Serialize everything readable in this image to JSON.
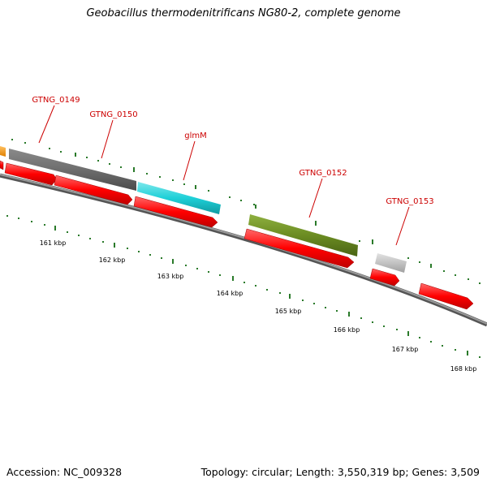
{
  "title": "Geobacillus thermodenitrificans NG80-2, complete genome",
  "footer": {
    "accession": "Accession: NC_009328",
    "summary": "Topology: circular; Length: 3,550,319 bp; Genes: 3,509"
  },
  "colors": {
    "background": "#ffffff",
    "backbone": "#7a7a7a",
    "cds": "#ff0000",
    "label": "#cc0000",
    "tick": "#2a7a2a",
    "gene_dark_gray": "#6e6e6e",
    "gene_cyan": "#1ed0d8",
    "gene_olive": "#6b8c22",
    "gene_light_gray": "#c2c2c2",
    "gene_orange": "#f0a020"
  },
  "genes": [
    {
      "name": "GTNG_0149",
      "color": "gene_dark_gray"
    },
    {
      "name": "GTNG_0150",
      "color": "gene_dark_gray"
    },
    {
      "name": "glmM",
      "color": "gene_cyan"
    },
    {
      "name": "GTNG_0152",
      "color": "gene_olive"
    },
    {
      "name": "GTNG_0153",
      "color": "gene_light_gray"
    }
  ],
  "scale": {
    "ticks": [
      "161 kbp",
      "162 kbp",
      "163 kbp",
      "164 kbp",
      "165 kbp",
      "166 kbp",
      "167 kbp",
      "168 kbp"
    ]
  }
}
